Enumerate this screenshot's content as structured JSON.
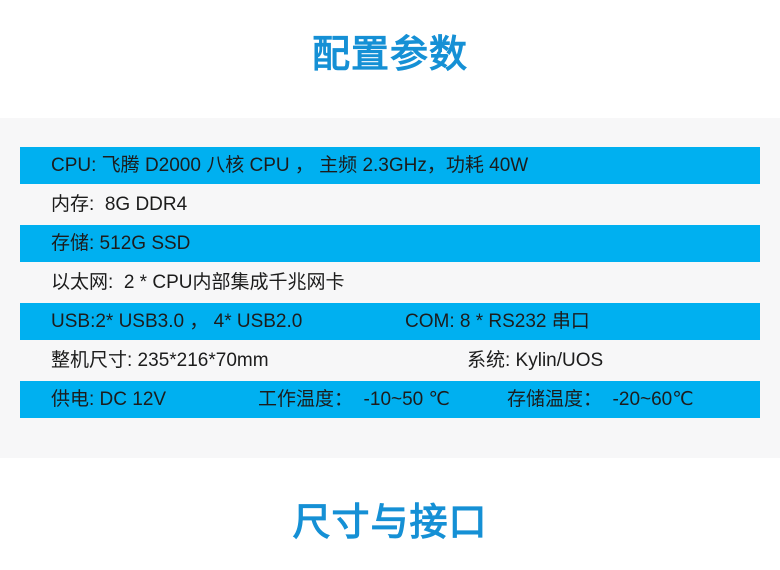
{
  "header": {
    "title": "配置参数"
  },
  "footer": {
    "title": "尺寸与接口"
  },
  "colors": {
    "row_highlight": "#00b0f0",
    "title_blue": "#1590d5",
    "panel_background": "#f7f7f8",
    "text": "#1c1c1c"
  },
  "spec_table": {
    "rows": [
      {
        "highlight": true,
        "cells": [
          "CPU: 飞腾 D2000 八核 CPU ， 主频 2.3GHz，功耗 40W"
        ]
      },
      {
        "highlight": false,
        "cells": [
          "内存:  8G DDR4"
        ]
      },
      {
        "highlight": true,
        "cells": [
          "存储: 512G SSD"
        ]
      },
      {
        "highlight": false,
        "cells": [
          "以太网:  2 * CPU内部集成千兆网卡"
        ]
      },
      {
        "highlight": true,
        "cells": [
          "USB:2* USB3.0 ， 4* USB2.0",
          "COM: 8 * RS232 串口"
        ]
      },
      {
        "highlight": false,
        "cells": [
          "整机尺寸: 235*216*70mm",
          "系统: Kylin/UOS"
        ]
      },
      {
        "highlight": true,
        "cells": [
          "供电: DC 12V",
          "工作温度：  -10~50 ℃",
          "存储温度：  -20~60℃"
        ]
      }
    ]
  }
}
